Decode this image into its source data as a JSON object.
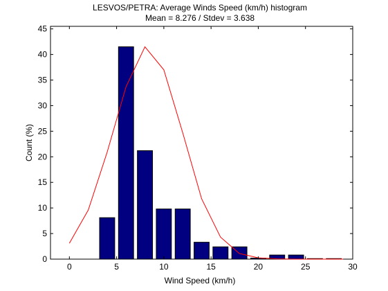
{
  "chart_data": {
    "type": "bar",
    "title": "LESVOS/PETRA: Average Winds Speed (km/h) histogram",
    "subtitle": "Mean = 8.276 / Stdev = 3.638",
    "xlabel": "Wind Speed (km/h)",
    "ylabel": "Count (%)",
    "xlim": [
      -2,
      30
    ],
    "ylim": [
      0,
      45.5
    ],
    "xticks": [
      0,
      5,
      10,
      15,
      20,
      25,
      30
    ],
    "yticks": [
      0,
      5,
      10,
      15,
      20,
      25,
      30,
      35,
      40,
      45
    ],
    "bar_width": 1.6,
    "grid": false,
    "series": [
      {
        "type": "bar",
        "color": "#000080",
        "x": [
          4,
          6,
          8,
          10,
          12,
          14,
          16,
          18,
          20,
          22,
          24,
          26,
          28
        ],
        "values": [
          8.1,
          41.5,
          21.2,
          9.8,
          9.8,
          3.3,
          2.4,
          2.4,
          0.2,
          0.8,
          0.8,
          0.1,
          0.1
        ]
      },
      {
        "type": "line",
        "color": "#ff0000",
        "x": [
          0,
          2,
          4,
          6,
          8,
          10,
          12,
          14,
          16,
          18,
          20,
          22,
          24,
          26,
          28,
          29
        ],
        "values": [
          3.1,
          9.6,
          20.9,
          33.7,
          41.5,
          37.0,
          24.7,
          11.8,
          4.3,
          1.1,
          0.25,
          0.05,
          0,
          0,
          0,
          0
        ]
      }
    ]
  }
}
